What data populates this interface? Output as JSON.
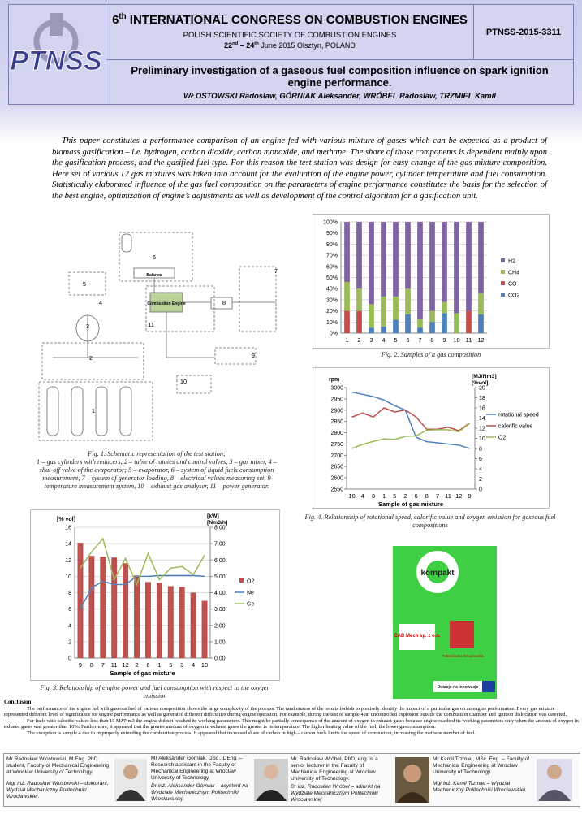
{
  "header": {
    "congress_number": "6",
    "congress_sup": "th",
    "congress_title": "INTERNATIONAL CONGRESS ON COMBUSTION ENGINES",
    "society": "POLISH SCIENTIFIC SOCIETY OF COMBUSTION ENGINES",
    "date_start": "22",
    "date_start_sup": "nd",
    "date_mid": "– 24",
    "date_mid_sup": "th",
    "date_rest": "June 2015 Olsztyn, POLAND",
    "code": "PTNSS-2015-3311",
    "logo": "PTNSS",
    "paper_title": "Preliminary investigation of a gaseous fuel composition influence on spark ignition engine performance.",
    "authors": "WŁOSTOWSKI Radosław, GÓRNIAK Aleksander, WRÓBEL Radosław, TRZMIEL Kamil"
  },
  "abstract": "This paper constitutes a performance comparison of an engine fed with various mixture of gases which can be expected as a product of biomass gasification – i.e. hydrogen, carbon dioxide, carbon monoxide, and methane. The share of those components is dependent mainly upon the gasification process, and the gasified fuel type. For this reason the test station was design for easy change of the gas mixture composition. Here set of various 12 gas mixtures was taken into account for the evaluation of the engine power, cylinder temperature and fuel consumption. Statistically elaborated influence of the gas fuel composition on the parameters of engine performance constitutes the basis for the selection of the best engine, optimization of engine’s adjustments as well as development of the control algorithm for a gasification unit.",
  "figure1": {
    "labels": [
      "1",
      "2",
      "3",
      "4",
      "5",
      "6",
      "7",
      "8",
      "9",
      "10",
      "11",
      "Balance",
      "Combustion Engine"
    ],
    "caption_title": "Fig. 1. Schematic representation of the test station;",
    "caption_text": "1 – gas cylinders with reducers, 2 – table of rotates and control valves, 3 – gas mixer, 4 – shut-off valve of the evaporator; 5 – evaporator, 6 – system of liquid fuels consumption measurement, 7 – system of generator loading, 8 – electrical values measuring set, 9 temperature measurement system, 10 – exhaust gas analyser, 11 – power generator."
  },
  "chart_data": [
    {
      "type": "bar",
      "stacked": true,
      "grid": true,
      "legend": "right",
      "caption": "Fig. 2. Samples of a gas composition",
      "categories": [
        "1",
        "2",
        "3",
        "4",
        "5",
        "6",
        "7",
        "8",
        "9",
        "10",
        "11",
        "12"
      ],
      "series": [
        {
          "name": "CO2",
          "color": "#4f81bd",
          "values": [
            0,
            0,
            5,
            6,
            12,
            17,
            5,
            10,
            18,
            0,
            0,
            17
          ]
        },
        {
          "name": "CO",
          "color": "#c0504d",
          "values": [
            20,
            20,
            0,
            0,
            0,
            0,
            0,
            0,
            0,
            0,
            20,
            0
          ]
        },
        {
          "name": "CH4",
          "color": "#9bbb59",
          "values": [
            26,
            20,
            21,
            27,
            21,
            23,
            8,
            10,
            10,
            18,
            0,
            19
          ]
        },
        {
          "name": "H2",
          "color": "#8064a2",
          "values": [
            54,
            60,
            74,
            67,
            67,
            60,
            87,
            80,
            72,
            82,
            80,
            64
          ]
        }
      ],
      "ylim": [
        0,
        100
      ],
      "yticks": [
        {
          "value": 0,
          "label": "0%"
        },
        {
          "value": 10,
          "label": "10%"
        },
        {
          "value": 20,
          "label": "20%"
        },
        {
          "value": 30,
          "label": "30%"
        },
        {
          "value": 40,
          "label": "40%"
        },
        {
          "value": 50,
          "label": "50%"
        },
        {
          "value": 60,
          "label": "60%"
        },
        {
          "value": 70,
          "label": "70%"
        },
        {
          "value": 80,
          "label": "80%"
        },
        {
          "value": 90,
          "label": "90%"
        },
        {
          "value": 100,
          "label": "100%"
        }
      ]
    },
    {
      "type": "line",
      "grid": false,
      "legend": "right",
      "caption": "Fig. 4. Relationship of rotational speed, calorific value and oxygen emission for gaseous fuel compositions",
      "ylabel": "rpm",
      "y2label": [
        "[MJ/Nm3]",
        "[%vol]"
      ],
      "xlabel": "Sample of gas mixture",
      "categories": [
        "10",
        "4",
        "3",
        "1",
        "5",
        "2",
        "6",
        "8",
        "7",
        "11",
        "12",
        "9"
      ],
      "series": [
        {
          "name": "rotational speed",
          "color": "#4f81bd",
          "values": [
            2980,
            2970,
            2960,
            2945,
            2920,
            2900,
            2780,
            2760,
            2755,
            2750,
            2745,
            2730
          ]
        },
        {
          "name": "calorific value",
          "color": "#c0504d",
          "axis": "y2",
          "values": [
            14.2,
            15,
            14.2,
            16,
            15.2,
            15.6,
            14.2,
            11.8,
            11.8,
            12.2,
            11.5,
            13
          ]
        },
        {
          "name": "O2",
          "color": "#9bbb59",
          "axis": "y2",
          "values": [
            8,
            8.8,
            9.4,
            9.9,
            9.8,
            10.4,
            10.5,
            11.6,
            11.7,
            11.7,
            11.3,
            12.9
          ]
        }
      ],
      "ylim": [
        2550,
        3000
      ],
      "yticks": [
        2550,
        2600,
        2650,
        2700,
        2750,
        2800,
        2850,
        2900,
        2950,
        3000
      ],
      "y2lim": [
        0,
        20
      ],
      "y2ticks": [
        0,
        2,
        4,
        6,
        8,
        10,
        12,
        14,
        16,
        18,
        20
      ]
    },
    {
      "type": "bar",
      "grid": true,
      "legend": "right",
      "caption": "Fig. 3. Relationship of engine power and fuel consumption with respect to the oxygen emission",
      "ylabel": "[% vol]",
      "y2label": [
        "[kW]",
        "[Nm3/h]"
      ],
      "xlabel": "Sample of gas mixture",
      "categories": [
        "9",
        "8",
        "7",
        "11",
        "12",
        "2",
        "6",
        "1",
        "5",
        "3",
        "4",
        "10"
      ],
      "series": [
        {
          "name": "O2",
          "color": "#c0504d",
          "values": [
            14.1,
            12.5,
            12.4,
            12.3,
            11.6,
            10.1,
            9.3,
            9.2,
            8.8,
            8.7,
            8.0,
            7.0
          ]
        },
        {
          "name": "Ne",
          "color": "#4f81bd",
          "type": "line",
          "axis": "y2",
          "values": [
            3.0,
            4.3,
            4.7,
            4.5,
            4.5,
            5.0,
            5.0,
            5.05,
            5.05,
            5.05,
            5.05,
            5.0
          ]
        },
        {
          "name": "Ge",
          "color": "#9bbb59",
          "type": "line",
          "axis": "y2",
          "values": [
            5.5,
            6.5,
            7.3,
            4.8,
            6.1,
            4.5,
            6.4,
            4.8,
            5.5,
            5.6,
            5.1,
            6.3
          ]
        }
      ],
      "ylim": [
        0,
        16
      ],
      "yticks": [
        0,
        2,
        4,
        6,
        8,
        10,
        12,
        14,
        16
      ],
      "y2lim": [
        0,
        8
      ],
      "y2ticks": [
        {
          "value": 0,
          "label": "0.00"
        },
        {
          "value": 1,
          "label": "1.00"
        },
        {
          "value": 2,
          "label": "2.00"
        },
        {
          "value": 3,
          "label": "3.00"
        },
        {
          "value": 4,
          "label": "4.00"
        },
        {
          "value": 5,
          "label": "5.00"
        },
        {
          "value": 6,
          "label": "6.00"
        },
        {
          "value": 7,
          "label": "7.00"
        },
        {
          "value": 8,
          "label": "8.00"
        }
      ]
    }
  ],
  "sponsor": {
    "logo": "kompakt",
    "company": "CAD Mech sp. z o.o.",
    "university": "Politechnika Wrocławska",
    "grant": "Dotacje na innowacje"
  },
  "conclusion": {
    "title": "Conclusion",
    "paragraphs": [
      "The performance of the engine fed with gaseous fuel of various composition shows the large complexity of the process. The randomness of the results forbids to precisely identify the impact of a particular gas on an engine performance. Every gas mixture represented different level of significance for engine performance as well as generated different difficulties during engine operation. For example, during the test of sample 4 an uncontrolled explosion outside the combustion chamber and ignition dislocation was detected.",
      "For fuels with calorific values less than 15 MJ/Nm3 the engine did not reached its working parameters. This might be partially consequence of the amount of oxygen in exhaust gases because engine reached its working parameters only when the amount of oxygen in exhaust gases was greater than 10%. Furthermore, it appeared that the greater amount of oxygen in exhaust gases the greater is its temperature. The higher heating value of the fuel, the lower gas consumption.",
      "The exception is sample 4 due to improperly extending the combustion process. It appeared that increased share of carbon in high – carbon fuels limits the speed of combustion, increasing the methane number of fuel."
    ]
  },
  "authors": [
    {
      "bio": "Mr Radosław Włostowski, M.Eng. PhD student, Faculty of Mechanical Engineering at Wrocław University of Technology.",
      "bio_pl": "Mgr inż. Radosław Włostowski – doktorant, Wydział Mechaniczny Politechniki Wrocławskiej."
    },
    {
      "bio": "Mr Aleksander Górniak, DSc., DEng. – Research assistant in the Faculty of Mechanical Engineering at Wroclaw University of Technology.",
      "bio_pl": "Dr inż. Aleksander Górniak – asystent na Wydziale Mechanicznym Politechniki Wrocławskiej."
    },
    {
      "bio": "Mr. Radosław Wróbel, PhD, eng. is a senior lecturer in the Faculty of Mechanical Engineering at Wroclaw University of Technology.",
      "bio_pl": "Dr inż. Radosław Wróbel – adiunkt na Wydziale Mechanicznym Politechniki Wrocławskiej"
    },
    {
      "bio": "Mr Kamil Trzmiel, MSc. Eng. – Faculty of Mechanical Engineering at Wroclaw University of Technology.",
      "bio_pl": "Mgr inż. Kamil Trzmiel – Wydział Mechaniczny Politechniki Wrocławskiej."
    }
  ]
}
